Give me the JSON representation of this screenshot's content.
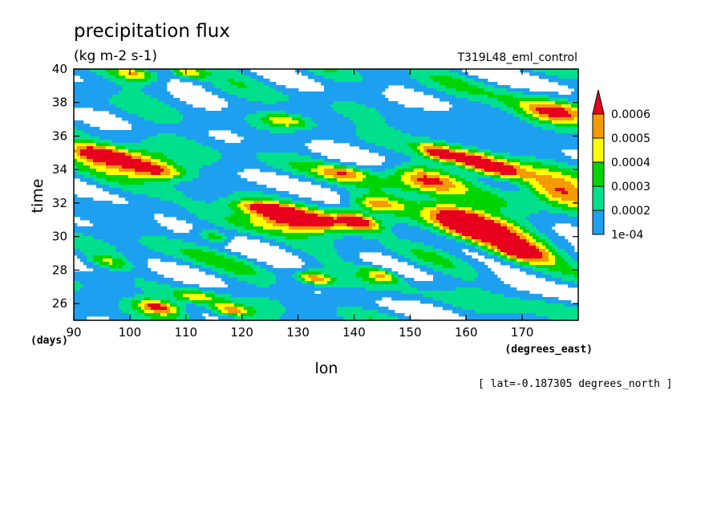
{
  "chart_data": {
    "type": "heatmap",
    "title": "precipitation flux",
    "units": "(kg m-2 s-1)",
    "experiment": "T319L48_eml_control",
    "xlabel": "lon",
    "x_units": "(degrees_east)",
    "ylabel": "time",
    "y_units": "(days)",
    "xlim": [
      90,
      180
    ],
    "ylim": [
      25,
      40
    ],
    "x_ticks": [
      90,
      100,
      110,
      120,
      130,
      140,
      150,
      160,
      170
    ],
    "y_ticks": [
      26,
      28,
      30,
      32,
      34,
      36,
      38,
      40
    ],
    "fixed_dim": "[ lat=-0.187305 degrees_north ]",
    "colorbar": {
      "levels": [
        0.0001,
        0.0002,
        0.0003,
        0.0004,
        0.0005,
        0.0006
      ],
      "labels": [
        "1e-04",
        "0.0002",
        "0.0003",
        "0.0004",
        "0.0005",
        "0.0006"
      ],
      "colors": [
        "#ffffff",
        "#1ea0f0",
        "#00e08c",
        "#00d400",
        "#ffff00",
        "#f59a00",
        "#e6001e"
      ]
    },
    "precip_cores": [
      {
        "lon": 100,
        "time": 34.6,
        "intensity": 0.00066,
        "semi_lon": 4.5,
        "semi_time": 0.5
      },
      {
        "lon": 105,
        "time": 33.9,
        "intensity": 0.00058,
        "semi_lon": 3.5,
        "semi_time": 0.35
      },
      {
        "lon": 94,
        "time": 35.0,
        "intensity": 0.00055,
        "semi_lon": 3,
        "semi_time": 0.4
      },
      {
        "lon": 132,
        "time": 30.9,
        "intensity": 0.00066,
        "semi_lon": 7,
        "semi_time": 0.45
      },
      {
        "lon": 127,
        "time": 31.5,
        "intensity": 0.00055,
        "semi_lon": 3,
        "semi_time": 0.35
      },
      {
        "lon": 163,
        "time": 30.4,
        "intensity": 0.00068,
        "semi_lon": 5,
        "semi_time": 1.0
      },
      {
        "lon": 159,
        "time": 31.0,
        "intensity": 0.00052,
        "semi_lon": 3,
        "semi_time": 0.6
      },
      {
        "lon": 153,
        "time": 33.4,
        "intensity": 0.00065,
        "semi_lon": 4,
        "semi_time": 0.6
      },
      {
        "lon": 155,
        "time": 35.0,
        "intensity": 0.0006,
        "semi_lon": 2,
        "semi_time": 0.35
      },
      {
        "lon": 161,
        "time": 34.6,
        "intensity": 0.00055,
        "semi_lon": 2.5,
        "semi_time": 0.4
      },
      {
        "lon": 166,
        "time": 34.0,
        "intensity": 0.0006,
        "semi_lon": 3,
        "semi_time": 0.4
      },
      {
        "lon": 176,
        "time": 32.7,
        "intensity": 0.00062,
        "semi_lon": 4,
        "semi_time": 0.8
      },
      {
        "lon": 176,
        "time": 37.4,
        "intensity": 0.00062,
        "semi_lon": 4,
        "semi_time": 0.5
      },
      {
        "lon": 133,
        "time": 27.5,
        "intensity": 0.0006,
        "semi_lon": 2,
        "semi_time": 0.3
      },
      {
        "lon": 105,
        "time": 25.8,
        "intensity": 0.0006,
        "semi_lon": 2.5,
        "semi_time": 0.3
      },
      {
        "lon": 118,
        "time": 25.6,
        "intensity": 0.00056,
        "semi_lon": 2.5,
        "semi_time": 0.3
      },
      {
        "lon": 141,
        "time": 30.9,
        "intensity": 0.00054,
        "semi_lon": 2,
        "semi_time": 0.4
      },
      {
        "lon": 144,
        "time": 31.9,
        "intensity": 0.0005,
        "semi_lon": 3,
        "semi_time": 0.35
      },
      {
        "lon": 145,
        "time": 27.7,
        "intensity": 0.00048,
        "semi_lon": 2,
        "semi_time": 0.35
      },
      {
        "lon": 128,
        "time": 36.9,
        "intensity": 0.00045,
        "semi_lon": 3,
        "semi_time": 0.3
      },
      {
        "lon": 170,
        "time": 29.0,
        "intensity": 0.0005,
        "semi_lon": 3,
        "semi_time": 0.4
      },
      {
        "lon": 115,
        "time": 30.0,
        "intensity": 0.00045,
        "semi_lon": 2,
        "semi_time": 0.3
      },
      {
        "lon": 122,
        "time": 31.8,
        "intensity": 0.00045,
        "semi_lon": 3,
        "semi_time": 0.3
      },
      {
        "lon": 101,
        "time": 39.7,
        "intensity": 0.00045,
        "semi_lon": 2.5,
        "semi_time": 0.3
      },
      {
        "lon": 110,
        "time": 39.8,
        "intensity": 0.0005,
        "semi_lon": 2,
        "semi_time": 0.25
      },
      {
        "lon": 112,
        "time": 26.4,
        "intensity": 0.00045,
        "semi_lon": 3,
        "semi_time": 0.3
      },
      {
        "lon": 138,
        "time": 33.8,
        "intensity": 0.00042,
        "semi_lon": 3,
        "semi_time": 0.3
      },
      {
        "lon": 96,
        "time": 28.5,
        "intensity": 0.0004,
        "semi_lon": 2.5,
        "semi_time": 0.3
      }
    ]
  }
}
